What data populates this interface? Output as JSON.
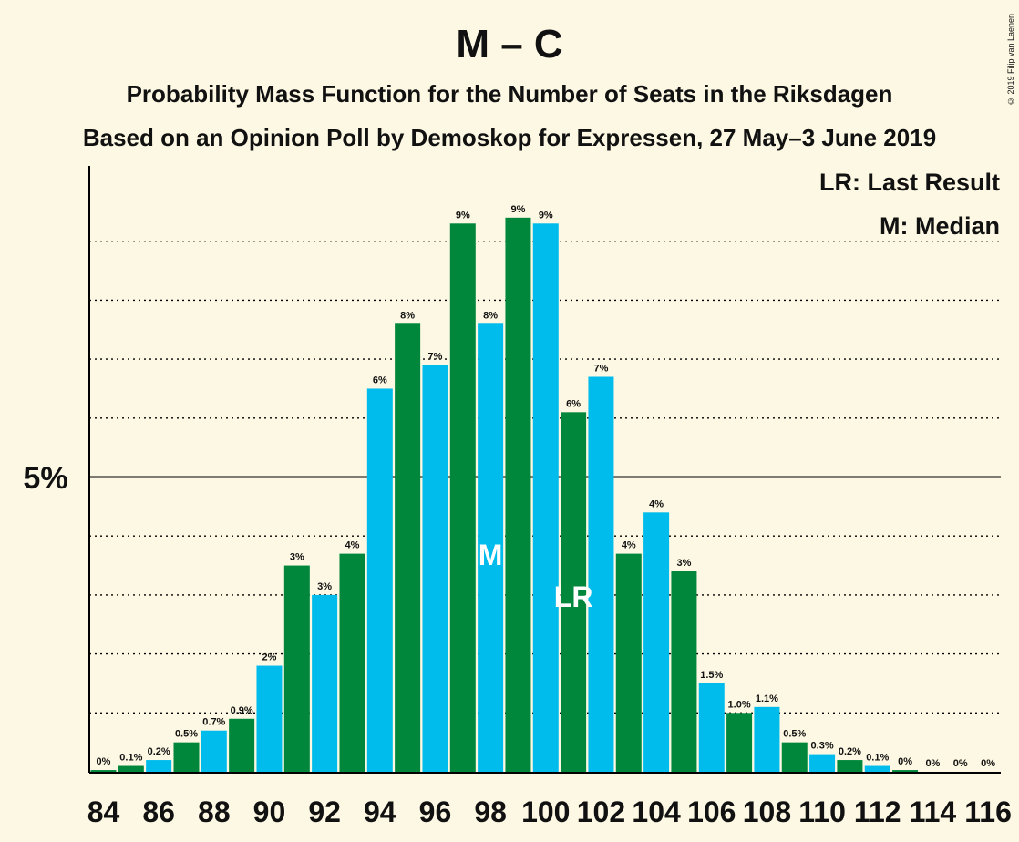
{
  "title": "M – C",
  "subtitle_1": "Probability Mass Function for the Number of Seats in the Riksdagen",
  "subtitle_2": "Based on an Opinion Poll by Demoskop for Expressen, 27 May–3 June 2019",
  "copyright": "© 2019 Filip van Laenen",
  "legend": {
    "lr": "LR: Last Result",
    "m": "M: Median"
  },
  "colors": {
    "background": "#fdf8e3",
    "green": "#00873c",
    "blue": "#00bcec",
    "text": "#111111"
  },
  "chart_data": {
    "type": "bar",
    "x": [
      84,
      85,
      86,
      87,
      88,
      89,
      90,
      91,
      92,
      93,
      94,
      95,
      96,
      97,
      98,
      99,
      100,
      101,
      102,
      103,
      104,
      105,
      106,
      107,
      108,
      109,
      110,
      111,
      112,
      113,
      114,
      115,
      116
    ],
    "values": [
      0.03,
      0.1,
      0.2,
      0.5,
      0.7,
      0.9,
      1.8,
      3.5,
      3.0,
      3.7,
      6.5,
      7.6,
      6.9,
      9.3,
      7.6,
      9.4,
      9.3,
      6.1,
      6.7,
      3.7,
      4.4,
      3.4,
      1.5,
      1.0,
      1.1,
      0.5,
      0.3,
      0.2,
      0.1,
      0.03,
      0.0,
      0.0,
      0.0
    ],
    "labels": [
      "0%",
      "0.1%",
      "0.2%",
      "0.5%",
      "0.7%",
      "0.9%",
      "2%",
      "3%",
      "3%",
      "4%",
      "6%",
      "8%",
      "7%",
      "9%",
      "8%",
      "9%",
      "9%",
      "6%",
      "7%",
      "4%",
      "4%",
      "3%",
      "1.5%",
      "1.0%",
      "1.1%",
      "0.5%",
      "0.3%",
      "0.2%",
      "0.1%",
      "0%",
      "0%",
      "0%",
      "0%"
    ],
    "colors": [
      "green",
      "green",
      "blue",
      "green",
      "blue",
      "green",
      "blue",
      "green",
      "blue",
      "green",
      "blue",
      "green",
      "blue",
      "green",
      "blue",
      "green",
      "blue",
      "green",
      "blue",
      "green",
      "blue",
      "green",
      "blue",
      "green",
      "blue",
      "green",
      "blue",
      "green",
      "blue",
      "green",
      "blue",
      "green",
      "blue"
    ],
    "x_tick_labels": [
      "84",
      "86",
      "88",
      "90",
      "92",
      "94",
      "96",
      "98",
      "100",
      "102",
      "104",
      "106",
      "108",
      "110",
      "112",
      "114",
      "116"
    ],
    "y_tick_label": "5%",
    "ylim": [
      0,
      10
    ],
    "gridlines": [
      1,
      2,
      3,
      4,
      5,
      6,
      7,
      8,
      9
    ],
    "median_seat": 98,
    "median_marker": "M",
    "last_result_seat": 101,
    "last_result_marker": "LR"
  }
}
